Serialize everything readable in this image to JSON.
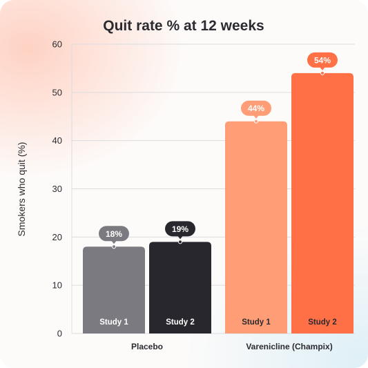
{
  "chart_data": {
    "type": "bar",
    "title": "Quit rate % at 12 weeks",
    "ylabel": "Smokers who quit (%)",
    "ylim": [
      0,
      60
    ],
    "yticks": [
      0,
      10,
      20,
      30,
      40,
      50,
      60
    ],
    "grid": true,
    "groups": [
      {
        "name": "Placebo",
        "bars": [
          {
            "label": "Study 1",
            "value": 18,
            "data_label": "18%",
            "color": "#7b7a80"
          },
          {
            "label": "Study 2",
            "value": 19,
            "data_label": "19%",
            "color": "#28272e"
          }
        ]
      },
      {
        "name": "Varenicline (Champix)",
        "bars": [
          {
            "label": "Study 1",
            "value": 44,
            "data_label": "44%",
            "color": "#ff9e76"
          },
          {
            "label": "Study 2",
            "value": 54,
            "data_label": "54%",
            "color": "#ff7047"
          }
        ]
      }
    ]
  }
}
